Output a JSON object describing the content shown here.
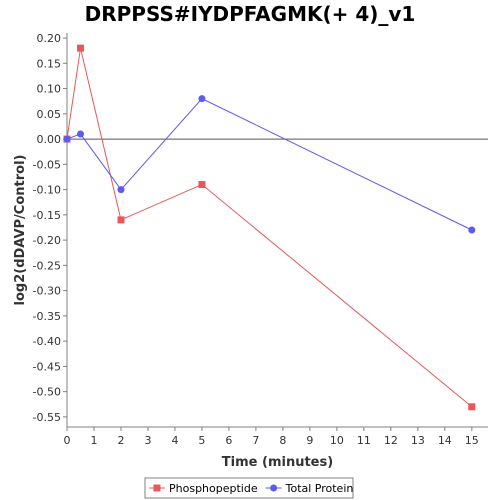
{
  "chart_data": {
    "type": "line",
    "title": "DRPPSS#IYDPFAGMK(+ 4)_v1",
    "xlabel": "Time (minutes)",
    "ylabel": "log2(dDAVP/Control)",
    "xlim": [
      0,
      15.6
    ],
    "ylim": [
      -0.57,
      0.21
    ],
    "x_ticks": [
      0,
      1,
      2,
      3,
      4,
      5,
      6,
      7,
      8,
      9,
      10,
      11,
      12,
      13,
      14,
      15
    ],
    "y_ticks": [
      0.2,
      0.15,
      0.1,
      0.05,
      0.0,
      -0.05,
      -0.1,
      -0.15,
      -0.2,
      -0.25,
      -0.3,
      -0.35,
      -0.4,
      -0.45,
      -0.5,
      -0.55
    ],
    "y_tick_labels": [
      "0.20",
      "0.15",
      "0.10",
      "0.05",
      "0.00",
      "-0.05",
      "-0.10",
      "-0.15",
      "-0.20",
      "-0.25",
      "-0.30",
      "-0.35",
      "-0.40",
      "-0.45",
      "-0.50",
      "-0.55"
    ],
    "zero_line": true,
    "grid": false,
    "legend_position": "bottom",
    "series": [
      {
        "name": "Phosphopeptide",
        "color": "#e8585a",
        "marker": "square",
        "x": [
          0,
          0.5,
          2,
          5,
          15
        ],
        "y": [
          0.0,
          0.18,
          -0.16,
          -0.09,
          -0.53
        ]
      },
      {
        "name": "Total Protein",
        "color": "#5b5bef",
        "marker": "circle",
        "x": [
          0,
          0.5,
          2,
          5,
          15
        ],
        "y": [
          0.0,
          0.01,
          -0.1,
          0.08,
          -0.18
        ]
      }
    ]
  }
}
